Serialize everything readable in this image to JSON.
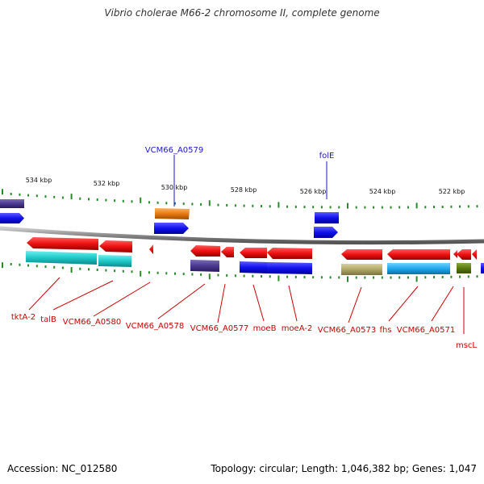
{
  "title": "Vibrio cholerae M66-2 chromosome II, complete genome",
  "footer": {
    "accession": "Accession: NC_012580",
    "stats": "Topology: circular; Length: 1,046,382 bp; Genes: 1,047"
  },
  "scale": {
    "tick_labels": [
      "534 kbp",
      "532 kbp",
      "530 kbp",
      "528 kbp",
      "526 kbp",
      "524 kbp",
      "522 kbp"
    ]
  },
  "labels_top": [
    "VCM66_A0579",
    "folE"
  ],
  "labels_bottom": [
    "tktA-2",
    "talB",
    "VCM66_A0580",
    "VCM66_A0578",
    "VCM66_A0577",
    "moeB",
    "moeA-2",
    "VCM66_A0573",
    "fhs",
    "VCM66_A0571",
    "mscL"
  ],
  "colors": {
    "forward_gene": "#3333dd",
    "reverse_gene": "#ee1111",
    "label_top": "#1a1acc",
    "label_bottom": "#cc0000",
    "tick": "#2a8a2a",
    "backbone": "#888888"
  }
}
